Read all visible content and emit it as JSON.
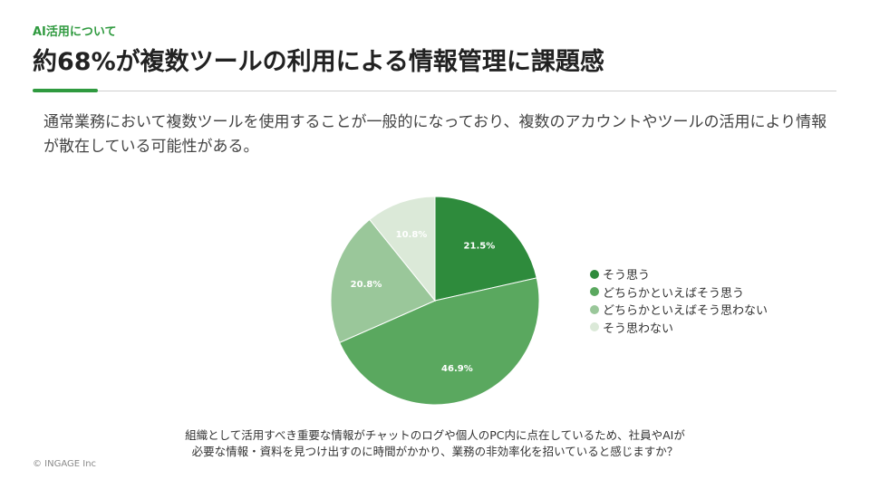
{
  "header": {
    "section_label": "AI活用について",
    "title": "約68%が複数ツールの利用による情報管理に課題感"
  },
  "description": "通常業務において複数ツールを使用することが一般的になっており、複数のアカウントやツールの活用により情報が散在している可能性がある。",
  "chart_data": {
    "type": "pie",
    "title": "",
    "start": "12 o'clock, clockwise",
    "legend_position": "right",
    "slices": [
      {
        "label": "そう思う",
        "value": 21.5,
        "display": "21.5%",
        "color": "#2e8b3c",
        "label_color": "#ffffff"
      },
      {
        "label": "どちらかといえばそう思う",
        "value": 46.9,
        "display": "46.9%",
        "color": "#5aa85f",
        "label_color": "#ffffff"
      },
      {
        "label": "どちらかといえばそう思わない",
        "value": 20.8,
        "display": "20.8%",
        "color": "#9ac79a",
        "label_color": "#ffffff"
      },
      {
        "label": "そう思わない",
        "value": 10.8,
        "display": "10.8%",
        "color": "#dbe9d8",
        "label_color": "#ffffff"
      }
    ]
  },
  "caption": {
    "line1": "組織として活用すべき重要な情報がチャットのログや個人のPC内に点在しているため、社員やAIが",
    "line2": "必要な情報・資料を見つけ出すのに時間がかかり、業務の非効率化を招いていると感じますか？"
  },
  "footer": {
    "copyright": "© INGAGE Inc"
  }
}
